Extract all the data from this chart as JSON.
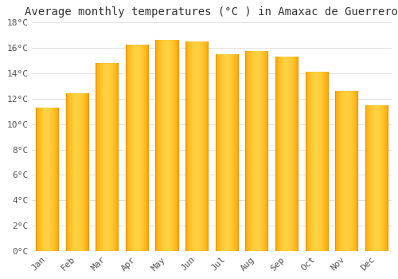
{
  "title": "Average monthly temperatures (°C ) in Amaxac de Guerrero",
  "months": [
    "Jan",
    "Feb",
    "Mar",
    "Apr",
    "May",
    "Jun",
    "Jul",
    "Aug",
    "Sep",
    "Oct",
    "Nov",
    "Dec"
  ],
  "values": [
    11.3,
    12.4,
    14.8,
    16.2,
    16.6,
    16.5,
    15.5,
    15.7,
    15.3,
    14.1,
    12.6,
    11.5
  ],
  "bar_color_light": "#FFD040",
  "bar_color_dark": "#FFA500",
  "background_color": "#FFFFFF",
  "plot_bg_color": "#FFFFFF",
  "ylim": [
    0,
    18
  ],
  "yticks": [
    0,
    2,
    4,
    6,
    8,
    10,
    12,
    14,
    16,
    18
  ],
  "ytick_labels": [
    "0°C",
    "2°C",
    "4°C",
    "6°C",
    "8°C",
    "10°C",
    "12°C",
    "14°C",
    "16°C",
    "18°C"
  ],
  "title_fontsize": 10,
  "tick_fontsize": 8,
  "grid_color": "#E0E0E0",
  "font_family": "monospace",
  "bar_width": 0.75
}
